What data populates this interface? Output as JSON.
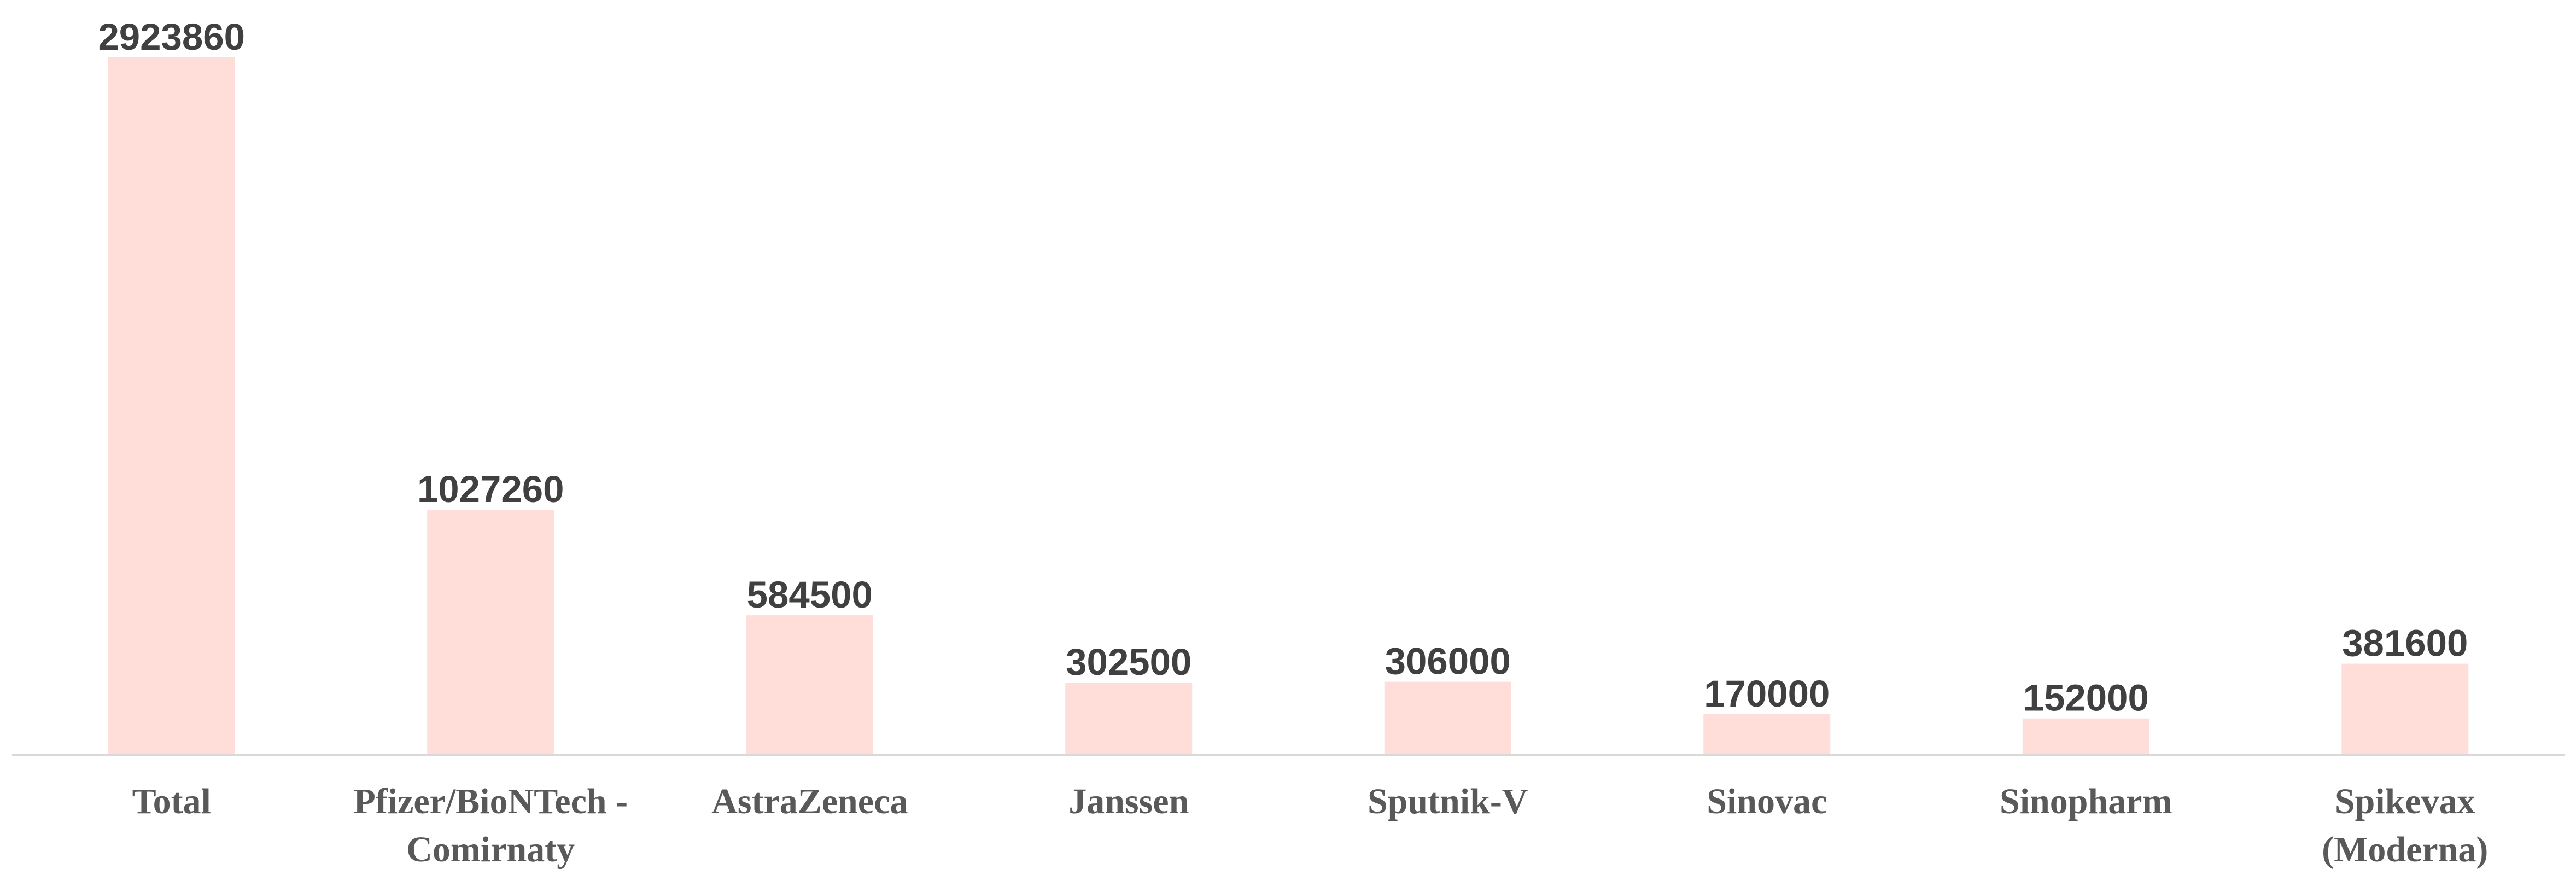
{
  "chart_data": {
    "type": "bar",
    "title": "",
    "xlabel": "",
    "ylabel": "",
    "categories": [
      [
        "Total"
      ],
      [
        "Pfizer/BioNTech -",
        "Comirnaty"
      ],
      [
        "AstraZeneca"
      ],
      [
        "Janssen"
      ],
      [
        "Sputnik-V"
      ],
      [
        "Sinovac"
      ],
      [
        "Sinopharm"
      ],
      [
        "Spikevax",
        "(Moderna)"
      ]
    ],
    "values": [
      2923860,
      1027260,
      584500,
      302500,
      306000,
      170000,
      152000,
      381600
    ],
    "ylim": [
      0,
      2923860
    ],
    "grid": false,
    "legend": "none",
    "colors": {
      "bar": "#FFDDD9",
      "value_text": "#404040",
      "category_text": "#595959",
      "axis_line": "#D9D9D9"
    }
  }
}
